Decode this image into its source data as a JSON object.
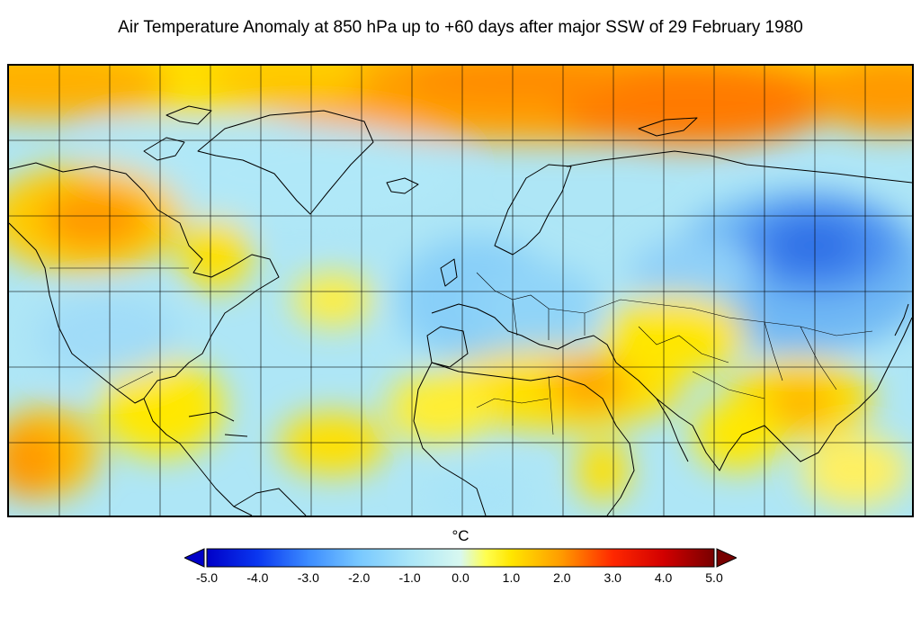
{
  "title": "Air Temperature Anomaly at 850 hPa up to +60 days after major SSW of 29 February 1980",
  "colorbar": {
    "unit": "°C",
    "range": [
      -5.0,
      5.0
    ],
    "ticks": [
      "-5.0",
      "-4.0",
      "-3.0",
      "-2.0",
      "-1.0",
      "0.0",
      "1.0",
      "2.0",
      "3.0",
      "4.0",
      "5.0"
    ],
    "stops": [
      {
        "value": -5.0,
        "color": "#0000c8"
      },
      {
        "value": -4.0,
        "color": "#0a37f0"
      },
      {
        "value": -3.0,
        "color": "#3c8cff"
      },
      {
        "value": -2.0,
        "color": "#78c8ff"
      },
      {
        "value": -1.0,
        "color": "#aae6f8"
      },
      {
        "value": 0.0,
        "color": "#d8f8f0"
      },
      {
        "value": 0.5,
        "color": "#ffff50"
      },
      {
        "value": 1.0,
        "color": "#ffe600"
      },
      {
        "value": 2.0,
        "color": "#ff9a00"
      },
      {
        "value": 3.0,
        "color": "#ff2800"
      },
      {
        "value": 4.0,
        "color": "#d20000"
      },
      {
        "value": 5.0,
        "color": "#780000"
      }
    ],
    "extend": "both"
  },
  "map": {
    "projection": "equirectangular",
    "graticule": "on",
    "coastlines": "on",
    "country_borders": "on"
  }
}
